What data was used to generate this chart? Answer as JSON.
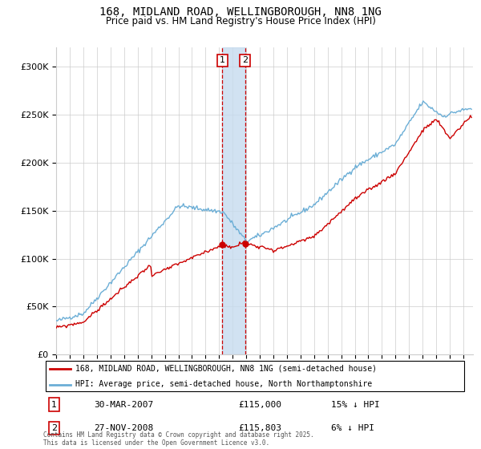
{
  "title": "168, MIDLAND ROAD, WELLINGBOROUGH, NN8 1NG",
  "subtitle": "Price paid vs. HM Land Registry's House Price Index (HPI)",
  "legend_line1": "168, MIDLAND ROAD, WELLINGBOROUGH, NN8 1NG (semi-detached house)",
  "legend_line2": "HPI: Average price, semi-detached house, North Northamptonshire",
  "footer": "Contains HM Land Registry data © Crown copyright and database right 2025.\nThis data is licensed under the Open Government Licence v3.0.",
  "transaction1_date": "30-MAR-2007",
  "transaction1_price": "£115,000",
  "transaction1_hpi": "15% ↓ HPI",
  "transaction2_date": "27-NOV-2008",
  "transaction2_price": "£115,803",
  "transaction2_hpi": "6% ↓ HPI",
  "hpi_color": "#6baed6",
  "price_color": "#cc0000",
  "shading_color": "#c6dbef",
  "grid_color": "#cccccc",
  "ylim": [
    0,
    320000
  ],
  "yticks": [
    0,
    50000,
    100000,
    150000,
    200000,
    250000,
    300000
  ],
  "ytick_labels": [
    "£0",
    "£50K",
    "£100K",
    "£150K",
    "£200K",
    "£250K",
    "£300K"
  ],
  "t1_year": 2007.247,
  "t2_year": 2008.91,
  "t1_price": 115000,
  "t2_price": 115803,
  "hpi_seed": 42,
  "price_seed": 99
}
